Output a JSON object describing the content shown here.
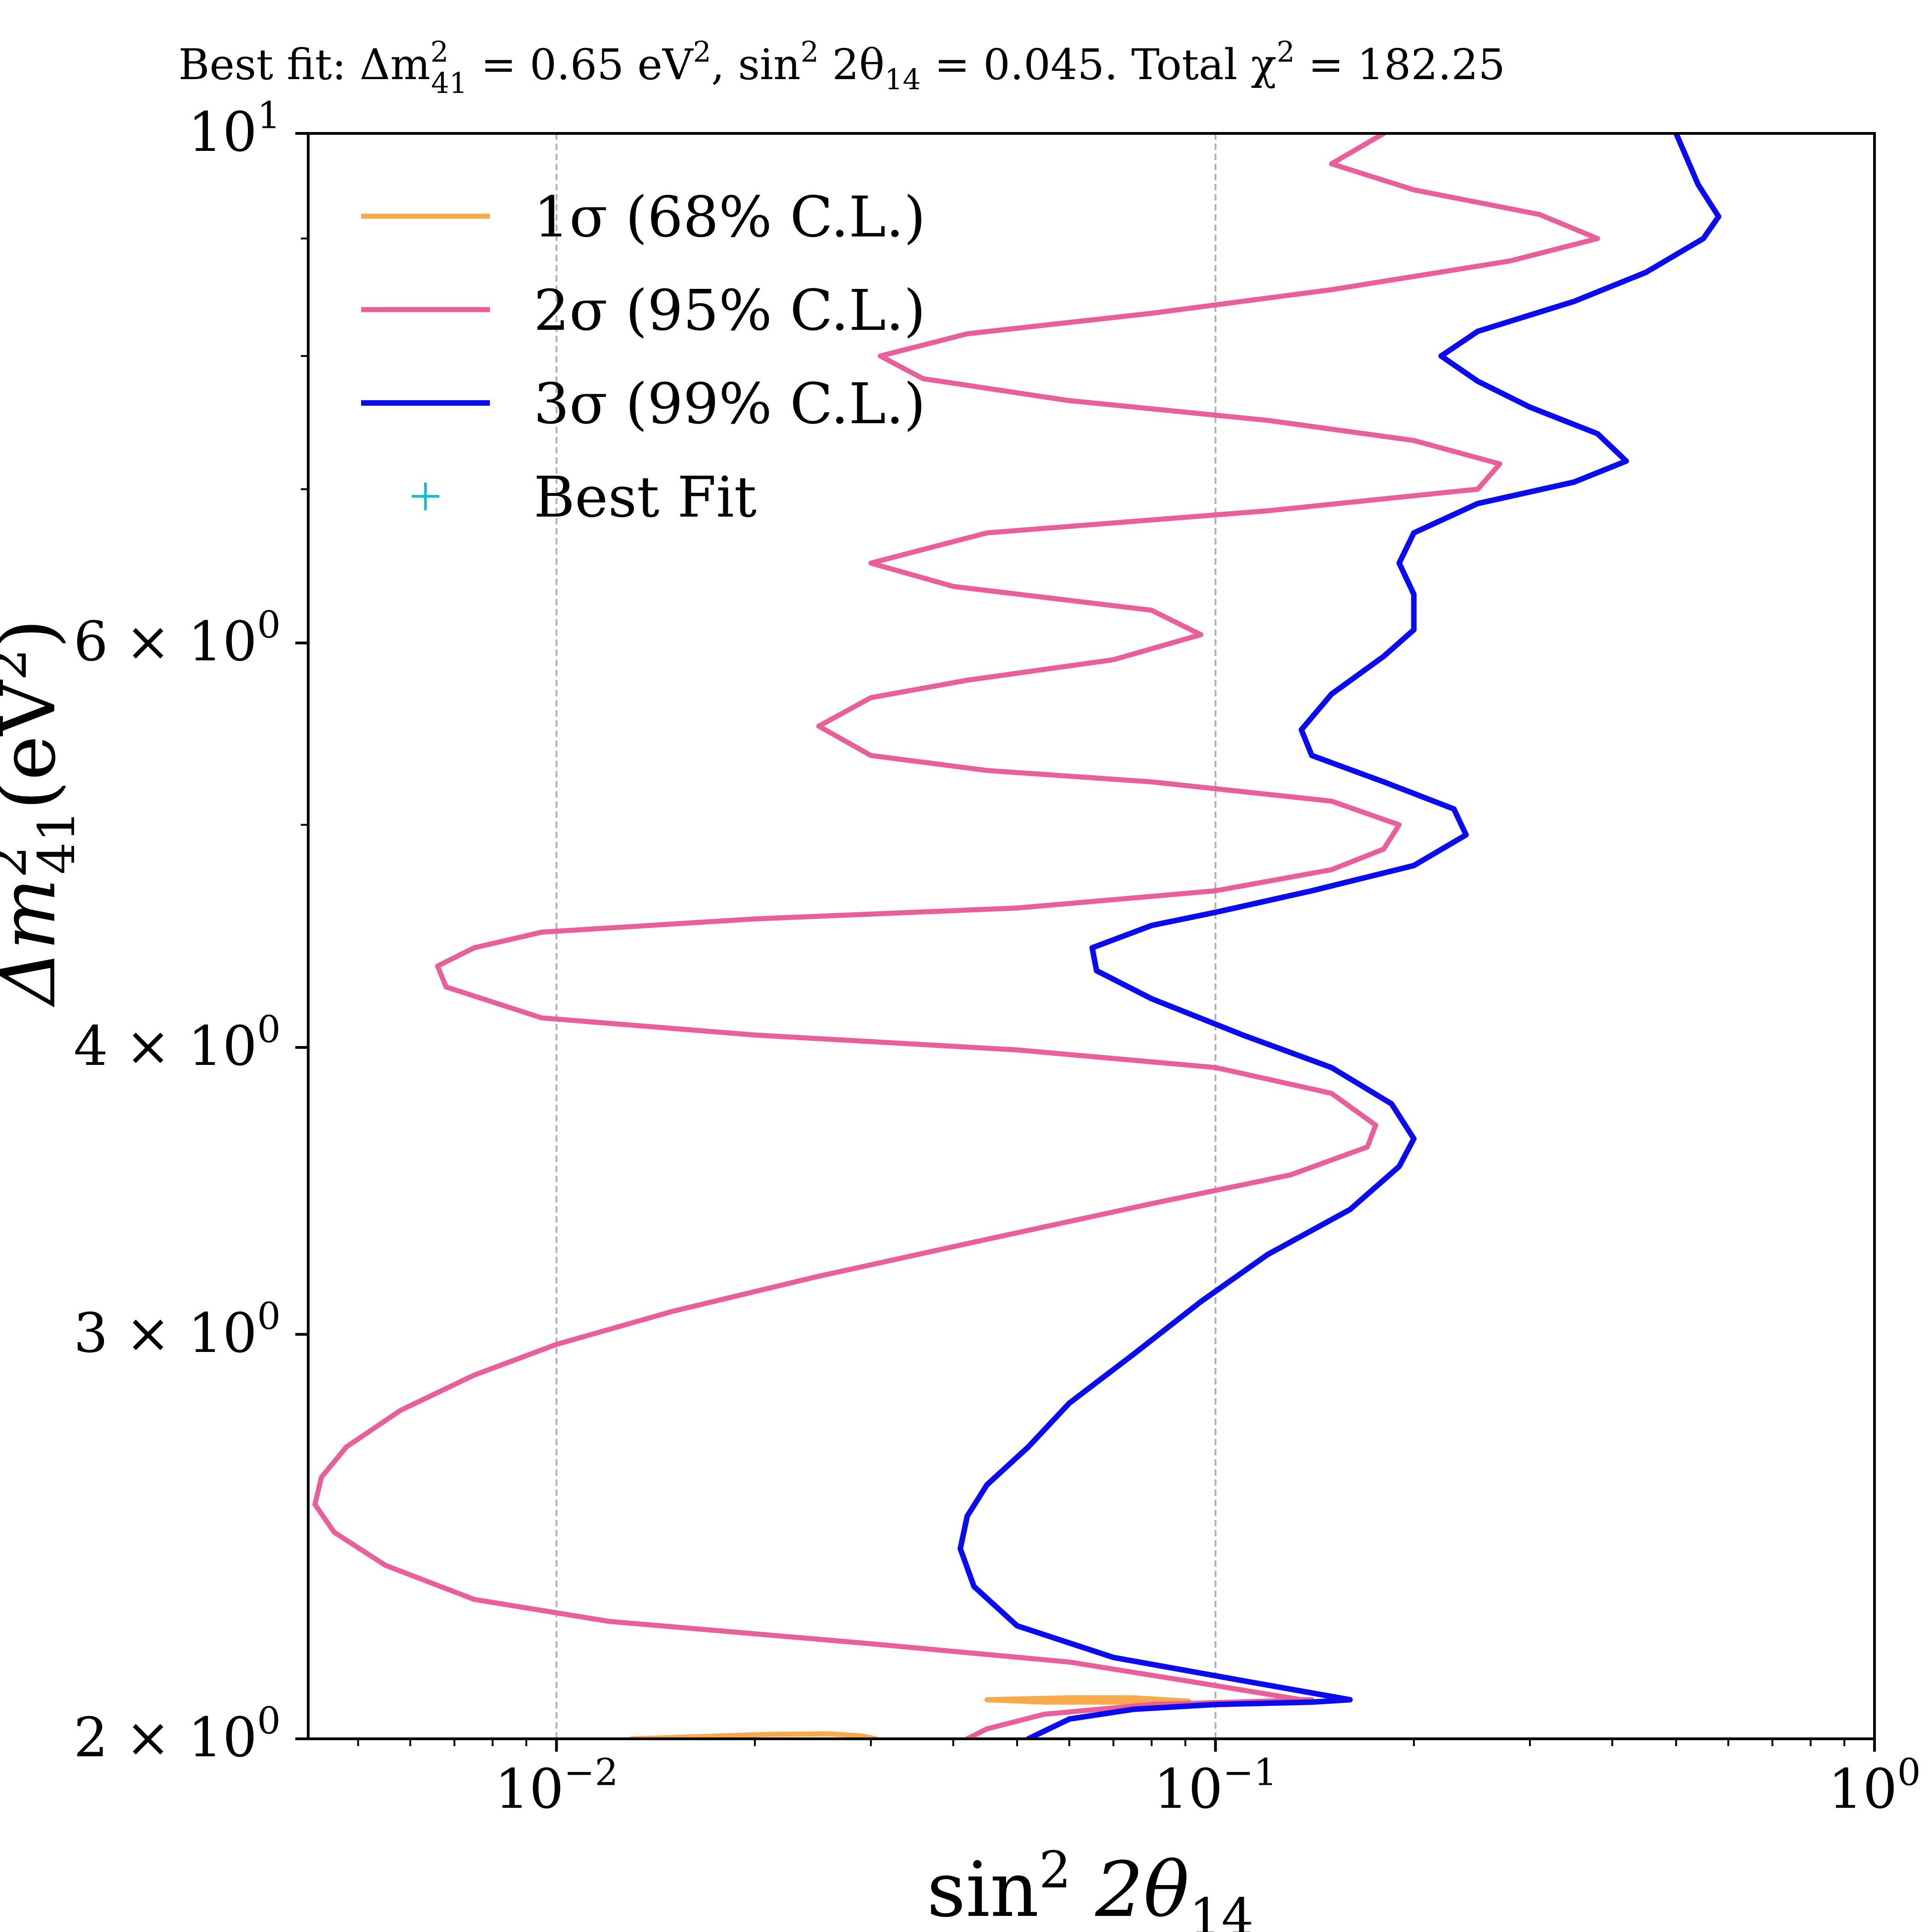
{
  "chart_data": {
    "type": "line",
    "title": "Best fit: Δm²₄₁ = 0.65 eV², sin² 2θ₁₄ = 0.045. Total χ² = 182.25",
    "title_parts": {
      "lead": "Best fit: Δm",
      "sup1": "2",
      "sub1": "41",
      "mid1": " = 0.65 eV",
      "sup2": "2",
      "mid2": ", sin",
      "sup3": "2",
      "mid3": " 2θ",
      "sub3": "14",
      "mid4": " = 0.045. Total χ",
      "sup4": "2",
      "tail": " = 182.25"
    },
    "xlabel": "sin² 2θ₁₄",
    "xlabel_parts": {
      "base": "sin",
      "sup": "2",
      "mid": " 2θ",
      "sub": "14"
    },
    "ylabel": "Δm²₄₁(eV²)",
    "ylabel_parts": {
      "base": "Δm",
      "sup": "2",
      "sub": "41",
      "tail": "(eV",
      "sup2": "2",
      "close": ")"
    },
    "xscale": "log",
    "yscale": "log",
    "xlim": [
      0.0042,
      1.0
    ],
    "ylim": [
      2.0,
      10.0
    ],
    "grid": "vertical dashed at major x ticks",
    "legend_position": "upper-left",
    "x_ticks": [
      {
        "value": 0.01,
        "base": "10",
        "exp": "−2"
      },
      {
        "value": 0.1,
        "base": "10",
        "exp": "−1"
      },
      {
        "value": 1.0,
        "base": "10",
        "exp": "0"
      }
    ],
    "y_ticks": [
      {
        "value": 2,
        "mant": "2 × 10",
        "exp": "0"
      },
      {
        "value": 3,
        "mant": "3 × 10",
        "exp": "0"
      },
      {
        "value": 4,
        "mant": "4 × 10",
        "exp": "0"
      },
      {
        "value": 6,
        "mant": "6 × 10",
        "exp": "0"
      },
      {
        "value": 10,
        "mant": "10",
        "exp": "1"
      }
    ],
    "y_minor_ticks": [
      5,
      7,
      8,
      9
    ],
    "series": [
      {
        "name": "1σ (68% C.L.)",
        "legend_main": "1σ (68% C.L.)",
        "color": "#f7a94c",
        "width": 11,
        "paths": [
          [
            [
              0.013,
              2.0
            ],
            [
              0.016,
              2.004
            ],
            [
              0.021,
              2.009
            ],
            [
              0.026,
              2.01
            ],
            [
              0.029,
              2.006
            ],
            [
              0.0305,
              2.0
            ]
          ],
          [
            [
              0.045,
              2.08
            ],
            [
              0.06,
              2.084
            ],
            [
              0.075,
              2.084
            ],
            [
              0.091,
              2.077
            ],
            [
              0.075,
              2.075
            ],
            [
              0.055,
              2.075
            ],
            [
              0.045,
              2.08
            ]
          ]
        ]
      },
      {
        "name": "2σ (95% C.L.)",
        "legend_main": "2σ (95% C.L.)",
        "color": "#e85f9a",
        "width": 11,
        "paths": [
          [
            [
              0.042,
              2.0
            ],
            [
              0.045,
              2.02
            ],
            [
              0.055,
              2.05
            ],
            [
              0.08,
              2.07
            ],
            [
              0.14,
              2.08
            ],
            [
              0.135,
              2.08
            ],
            [
              0.09,
              2.12
            ],
            [
              0.06,
              2.16
            ],
            [
              0.03,
              2.2
            ],
            [
              0.012,
              2.25
            ],
            [
              0.0075,
              2.3
            ],
            [
              0.0055,
              2.38
            ],
            [
              0.0046,
              2.46
            ],
            [
              0.0043,
              2.53
            ],
            [
              0.0044,
              2.6
            ],
            [
              0.0048,
              2.68
            ],
            [
              0.0058,
              2.78
            ],
            [
              0.0075,
              2.88
            ],
            [
              0.01,
              2.97
            ],
            [
              0.015,
              3.07
            ],
            [
              0.025,
              3.18
            ],
            [
              0.045,
              3.3
            ],
            [
              0.08,
              3.42
            ],
            [
              0.13,
              3.52
            ],
            [
              0.17,
              3.62
            ],
            [
              0.175,
              3.7
            ],
            [
              0.15,
              3.82
            ],
            [
              0.1,
              3.92
            ],
            [
              0.05,
              3.99
            ],
            [
              0.02,
              4.05
            ],
            [
              0.0095,
              4.12
            ],
            [
              0.0068,
              4.25
            ],
            [
              0.0066,
              4.34
            ],
            [
              0.0075,
              4.42
            ],
            [
              0.0095,
              4.49
            ],
            [
              0.02,
              4.55
            ],
            [
              0.05,
              4.6
            ],
            [
              0.1,
              4.68
            ],
            [
              0.15,
              4.78
            ],
            [
              0.18,
              4.88
            ],
            [
              0.19,
              5.0
            ],
            [
              0.15,
              5.12
            ],
            [
              0.08,
              5.22
            ],
            [
              0.045,
              5.28
            ],
            [
              0.03,
              5.36
            ],
            [
              0.025,
              5.52
            ],
            [
              0.03,
              5.68
            ],
            [
              0.042,
              5.78
            ],
            [
              0.07,
              5.9
            ],
            [
              0.095,
              6.05
            ],
            [
              0.08,
              6.2
            ],
            [
              0.04,
              6.35
            ],
            [
              0.03,
              6.5
            ],
            [
              0.045,
              6.7
            ],
            [
              0.12,
              6.85
            ],
            [
              0.25,
              7.0
            ],
            [
              0.27,
              7.18
            ],
            [
              0.2,
              7.35
            ],
            [
              0.12,
              7.5
            ],
            [
              0.06,
              7.65
            ],
            [
              0.036,
              7.82
            ],
            [
              0.031,
              8.0
            ],
            [
              0.042,
              8.18
            ],
            [
              0.08,
              8.35
            ],
            [
              0.15,
              8.55
            ],
            [
              0.28,
              8.8
            ],
            [
              0.38,
              9.0
            ],
            [
              0.31,
              9.22
            ],
            [
              0.2,
              9.45
            ],
            [
              0.15,
              9.7
            ],
            [
              0.18,
              10.0
            ]
          ]
        ]
      },
      {
        "name": "3σ (99% C.L.)",
        "legend_main": "3σ (99% C.L.)",
        "color": "#0b0bf0",
        "width": 12,
        "paths": [
          [
            [
              0.052,
              2.0
            ],
            [
              0.06,
              2.04
            ],
            [
              0.075,
              2.06
            ],
            [
              0.1,
              2.07
            ],
            [
              0.14,
              2.075
            ],
            [
              0.16,
              2.08
            ],
            [
              0.11,
              2.12
            ],
            [
              0.07,
              2.17
            ],
            [
              0.05,
              2.24
            ],
            [
              0.043,
              2.33
            ],
            [
              0.041,
              2.42
            ],
            [
              0.042,
              2.5
            ],
            [
              0.045,
              2.58
            ],
            [
              0.052,
              2.68
            ],
            [
              0.06,
              2.8
            ],
            [
              0.075,
              2.94
            ],
            [
              0.095,
              3.1
            ],
            [
              0.12,
              3.25
            ],
            [
              0.16,
              3.4
            ],
            [
              0.19,
              3.55
            ],
            [
              0.2,
              3.65
            ],
            [
              0.185,
              3.78
            ],
            [
              0.15,
              3.92
            ],
            [
              0.11,
              4.05
            ],
            [
              0.08,
              4.2
            ],
            [
              0.066,
              4.32
            ],
            [
              0.065,
              4.42
            ],
            [
              0.08,
              4.52
            ],
            [
              0.1,
              4.58
            ],
            [
              0.14,
              4.68
            ],
            [
              0.2,
              4.8
            ],
            [
              0.24,
              4.95
            ],
            [
              0.23,
              5.08
            ],
            [
              0.18,
              5.22
            ],
            [
              0.14,
              5.36
            ],
            [
              0.135,
              5.5
            ],
            [
              0.15,
              5.7
            ],
            [
              0.18,
              5.92
            ],
            [
              0.2,
              6.08
            ],
            [
              0.2,
              6.3
            ],
            [
              0.19,
              6.5
            ],
            [
              0.2,
              6.7
            ],
            [
              0.25,
              6.9
            ],
            [
              0.35,
              7.05
            ],
            [
              0.42,
              7.2
            ],
            [
              0.38,
              7.4
            ],
            [
              0.3,
              7.6
            ],
            [
              0.25,
              7.8
            ],
            [
              0.22,
              8.0
            ],
            [
              0.25,
              8.2
            ],
            [
              0.35,
              8.45
            ],
            [
              0.45,
              8.7
            ],
            [
              0.55,
              9.0
            ],
            [
              0.58,
              9.2
            ],
            [
              0.54,
              9.5
            ],
            [
              0.5,
              10.0
            ]
          ]
        ]
      },
      {
        "name": "Best Fit",
        "legend_main": "Best Fit",
        "color": "#17becf",
        "marker": "+",
        "points": []
      }
    ]
  }
}
